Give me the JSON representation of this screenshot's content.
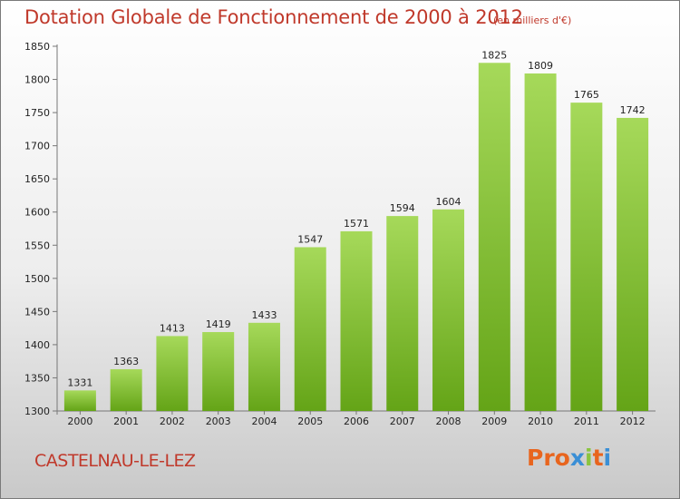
{
  "header": {
    "title": "Dotation Globale de Fonctionnement de 2000 à 2012",
    "unit": "(en milliers d'€)"
  },
  "footer": {
    "commune": "CASTELNAU-LE-LEZ",
    "logo": "Proxiti"
  },
  "colors": {
    "title": "#c0392b",
    "bar_light": "#a6d95a",
    "bar_dark": "#64a417",
    "logo_letters": [
      "#e8651e",
      "#e8651e",
      "#e8651e",
      "#3a8fd6",
      "#8ac43f",
      "#e8651e",
      "#3a8fd6"
    ]
  },
  "chart_data": {
    "type": "bar",
    "title": "Dotation Globale de Fonctionnement de 2000 à 2012",
    "xlabel": "",
    "ylabel": "(en milliers d'€)",
    "categories": [
      "2000",
      "2001",
      "2002",
      "2003",
      "2004",
      "2005",
      "2006",
      "2007",
      "2008",
      "2009",
      "2010",
      "2011",
      "2012"
    ],
    "values": [
      1331,
      1363,
      1413,
      1419,
      1433,
      1547,
      1571,
      1594,
      1604,
      1825,
      1809,
      1765,
      1742
    ],
    "ylim": [
      1300,
      1850
    ],
    "yticks": [
      1300,
      1350,
      1400,
      1450,
      1500,
      1550,
      1600,
      1650,
      1700,
      1750,
      1800,
      1850
    ],
    "grid": false
  }
}
